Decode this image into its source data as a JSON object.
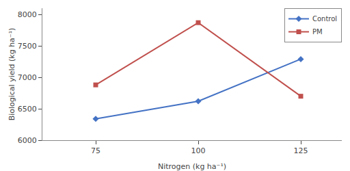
{
  "chart_data": {
    "type": "line",
    "xlabel": "Nitrogen (kg ha⁻¹)",
    "ylabel": "Biological yield (kg ha⁻¹)",
    "x": [
      75,
      100,
      125
    ],
    "series": [
      {
        "name": "Control",
        "color": "#4472C4",
        "marker": "diamond",
        "values": [
          6340,
          6620,
          7290
        ]
      },
      {
        "name": "PM",
        "color": "#C0504D",
        "marker": "square",
        "values": [
          6880,
          7870,
          6700
        ]
      }
    ],
    "xlim": [
      62,
      135
    ],
    "ylim": [
      6000,
      8100
    ],
    "xticks": [
      75,
      100,
      125
    ],
    "yticks": [
      6000,
      6500,
      7000,
      7500,
      8000
    ],
    "grid": false,
    "legend": "upper right"
  }
}
